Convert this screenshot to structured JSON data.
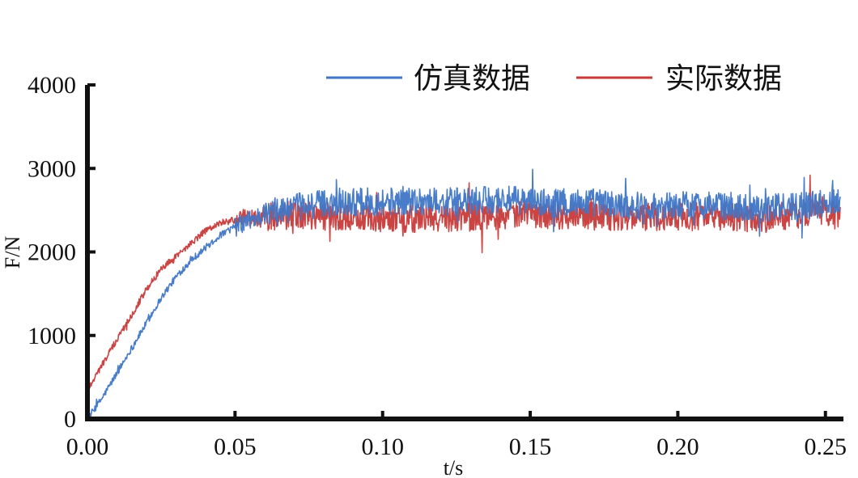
{
  "chart_data": {
    "type": "line",
    "xlabel": "t/s",
    "ylabel": "F/N",
    "xlim": [
      0,
      0.255
    ],
    "ylim": [
      0,
      4000
    ],
    "x_ticks": [
      "0.00",
      "0.05",
      "0.10",
      "0.15",
      "0.20",
      "0.25"
    ],
    "x_tick_values": [
      0,
      0.05,
      0.1,
      0.15,
      0.2,
      0.25
    ],
    "y_ticks": [
      "0",
      "1000",
      "2000",
      "3000",
      "4000"
    ],
    "y_tick_values": [
      0,
      1000,
      2000,
      3000,
      4000
    ],
    "grid": false,
    "legend_position": "top-right",
    "series": [
      {
        "name": "仿真数据",
        "color": "#3f76c6",
        "x": [
          0,
          0.005,
          0.01,
          0.015,
          0.02,
          0.025,
          0.03,
          0.035,
          0.04,
          0.045,
          0.05,
          0.055,
          0.06,
          0.07,
          0.08,
          0.09,
          0.1,
          0.11,
          0.12,
          0.13,
          0.14,
          0.15,
          0.16,
          0.17,
          0.18,
          0.19,
          0.2,
          0.21,
          0.22,
          0.23,
          0.24,
          0.25,
          0.255
        ],
        "y": [
          0,
          250,
          550,
          850,
          1150,
          1450,
          1700,
          1900,
          2050,
          2200,
          2300,
          2380,
          2450,
          2530,
          2580,
          2600,
          2600,
          2620,
          2600,
          2600,
          2630,
          2600,
          2580,
          2600,
          2560,
          2550,
          2560,
          2560,
          2540,
          2520,
          2550,
          2580,
          2650
        ]
      },
      {
        "name": "实际数据",
        "color": "#c83a3a",
        "x": [
          0,
          0.005,
          0.01,
          0.015,
          0.02,
          0.025,
          0.03,
          0.035,
          0.04,
          0.045,
          0.05,
          0.055,
          0.06,
          0.07,
          0.08,
          0.09,
          0.1,
          0.11,
          0.12,
          0.13,
          0.14,
          0.15,
          0.16,
          0.17,
          0.18,
          0.19,
          0.2,
          0.21,
          0.22,
          0.23,
          0.24,
          0.25,
          0.255
        ],
        "y": [
          350,
          650,
          950,
          1250,
          1550,
          1800,
          1950,
          2100,
          2250,
          2350,
          2380,
          2400,
          2420,
          2440,
          2430,
          2420,
          2400,
          2400,
          2410,
          2420,
          2440,
          2450,
          2440,
          2430,
          2420,
          2420,
          2430,
          2420,
          2410,
          2400,
          2450,
          2500,
          2400
        ]
      }
    ]
  }
}
